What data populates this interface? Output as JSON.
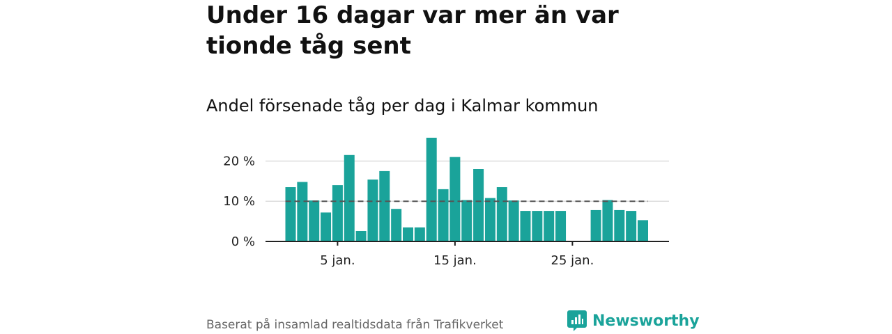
{
  "title": "Under 16 dagar var mer än var tionde tåg sent",
  "subtitle": "Andel försenade tåg per dag i Kalmar kommun",
  "footer": {
    "source": "Baserat på insamlad realtidsdata från Trafikverket",
    "logo_text": "Newsworthy"
  },
  "colors": {
    "bar": "#1aa39a",
    "reference_line": "#555555",
    "grid": "#dddddd",
    "axis": "#222222",
    "logo": "#1aa39a"
  },
  "chart_data": {
    "type": "bar",
    "title": "Under 16 dagar var mer än var tionde tåg sent",
    "subtitle": "Andel försenade tåg per dag i Kalmar kommun",
    "xlabel": "",
    "ylabel": "",
    "x": [
      1,
      2,
      3,
      4,
      5,
      6,
      7,
      8,
      9,
      10,
      11,
      12,
      13,
      14,
      15,
      16,
      17,
      18,
      19,
      20,
      21,
      22,
      23,
      24,
      25,
      26,
      27,
      28,
      29,
      30,
      31
    ],
    "values": [
      13.5,
      14.8,
      10.2,
      7.2,
      14.0,
      21.5,
      2.6,
      15.4,
      17.5,
      8.1,
      3.5,
      3.5,
      25.8,
      13.0,
      21.0,
      10.3,
      18.0,
      10.8,
      13.5,
      10.2,
      7.6,
      7.6,
      7.6,
      7.6,
      0,
      0,
      7.8,
      10.3,
      7.8,
      7.6,
      5.3
    ],
    "ylim": [
      0,
      27
    ],
    "yticks": [
      0,
      10,
      20
    ],
    "ytick_labels": [
      "0 %",
      "10 %",
      "20 %"
    ],
    "xticks": [
      5,
      15,
      25
    ],
    "xtick_labels": [
      "5 jan.",
      "15 jan.",
      "25 jan."
    ],
    "reference_line": 10,
    "grid": true
  }
}
